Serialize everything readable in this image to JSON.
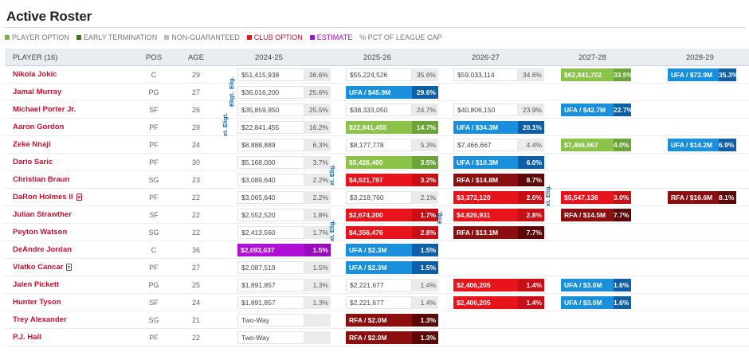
{
  "page": {
    "title": "Active Roster"
  },
  "legend": [
    {
      "label": "PLAYER OPTION",
      "color": "#7cb342"
    },
    {
      "label": "EARLY TERMINATION",
      "color": "#3d7a1f"
    },
    {
      "label": "NON-GUARANTEED",
      "color": "#bdbdbd"
    },
    {
      "label": "CLUB OPTION",
      "color": "#e8141c"
    },
    {
      "label": "ESTIMATE",
      "color": "#b10ed6"
    },
    {
      "label": "% PCT OF LEAGUE CAP",
      "color": ""
    }
  ],
  "columns": {
    "player": "PLAYER (16)",
    "pos": "POS",
    "age": "AGE",
    "seasons": [
      "2024-25",
      "2025-26",
      "2026-27",
      "2027-28",
      "2028-29"
    ]
  },
  "elig_labels": [
    "xt. Eligt.",
    "Eligt.",
    "Elig.",
    "xt. Elig.",
    "xt. Elig.",
    "Elig.",
    "xt. Elig."
  ],
  "rows": [
    {
      "name": "Nikola Jokic",
      "pos": "C",
      "age": "29",
      "icon": "",
      "cells": [
        {
          "t": "plain",
          "amt": "$51,415,938",
          "pct": "36.6%"
        },
        {
          "t": "plain",
          "amt": "$55,224,526",
          "pct": "35.6%"
        },
        {
          "t": "plain",
          "amt": "$59,033,114",
          "pct": "34.6%"
        },
        {
          "t": "player",
          "amt": "$62,841,702",
          "pct": "33.5%"
        },
        {
          "t": "ufa",
          "amt": "UFA / $72.9M",
          "pct": "35.3%"
        }
      ]
    },
    {
      "name": "Jamal Murray",
      "pos": "PG",
      "age": "27",
      "icon": "",
      "cells": [
        {
          "t": "plain",
          "amt": "$36,016,200",
          "pct": "25.6%"
        },
        {
          "t": "ufa",
          "amt": "UFA / $45.9M",
          "pct": "29.6%"
        },
        null,
        null,
        null
      ]
    },
    {
      "name": "Michael Porter Jr.",
      "pos": "SF",
      "age": "26",
      "icon": "",
      "cells": [
        {
          "t": "plain",
          "amt": "$35,859,950",
          "pct": "25.5%"
        },
        {
          "t": "plain",
          "amt": "$38,333,050",
          "pct": "24.7%"
        },
        {
          "t": "plain",
          "amt": "$40,806,150",
          "pct": "23.9%"
        },
        {
          "t": "ufa",
          "amt": "UFA / $42.7M",
          "pct": "22.7%"
        },
        null
      ]
    },
    {
      "name": "Aaron Gordon",
      "pos": "PF",
      "age": "29",
      "icon": "",
      "cells": [
        {
          "t": "plain",
          "amt": "$22,841,455",
          "pct": "16.2%"
        },
        {
          "t": "player",
          "amt": "$22,841,455",
          "pct": "14.7%"
        },
        {
          "t": "ufa",
          "amt": "UFA / $34.3M",
          "pct": "20.1%"
        },
        null,
        null
      ]
    },
    {
      "name": "Zeke Nnaji",
      "pos": "PF",
      "age": "24",
      "icon": "",
      "cells": [
        {
          "t": "plain",
          "amt": "$8,888,889",
          "pct": "6.3%"
        },
        {
          "t": "plain",
          "amt": "$8,177,778",
          "pct": "5.3%"
        },
        {
          "t": "plain",
          "amt": "$7,466,667",
          "pct": "4.4%"
        },
        {
          "t": "player",
          "amt": "$7,466,667",
          "pct": "4.0%"
        },
        {
          "t": "ufa",
          "amt": "UFA / $14.2M",
          "pct": "6.9%"
        }
      ]
    },
    {
      "name": "Dario Saric",
      "pos": "PF",
      "age": "30",
      "icon": "",
      "cells": [
        {
          "t": "plain",
          "amt": "$5,168,000",
          "pct": "3.7%"
        },
        {
          "t": "player",
          "amt": "$5,426,400",
          "pct": "3.5%"
        },
        {
          "t": "ufa",
          "amt": "UFA / $10.3M",
          "pct": "6.0%"
        },
        null,
        null
      ]
    },
    {
      "name": "Christian Braun",
      "pos": "SG",
      "age": "23",
      "icon": "",
      "cells": [
        {
          "t": "plain",
          "amt": "$3,089,640",
          "pct": "2.2%"
        },
        {
          "t": "club",
          "amt": "$4,921,797",
          "pct": "3.2%"
        },
        {
          "t": "rfa",
          "amt": "RFA / $14.8M",
          "pct": "8.7%"
        },
        null,
        null
      ]
    },
    {
      "name": "DaRon Holmes II",
      "pos": "PF",
      "age": "22",
      "icon": "doc",
      "cells": [
        {
          "t": "plain",
          "amt": "$3,065,640",
          "pct": "2.2%"
        },
        {
          "t": "plain",
          "amt": "$3,218,760",
          "pct": "2.1%"
        },
        {
          "t": "club",
          "amt": "$3,372,120",
          "pct": "2.0%"
        },
        {
          "t": "club",
          "amt": "$5,547,138",
          "pct": "3.0%"
        },
        {
          "t": "rfa",
          "amt": "RFA / $16.6M",
          "pct": "8.1%"
        }
      ]
    },
    {
      "name": "Julian Strawther",
      "pos": "SF",
      "age": "22",
      "icon": "",
      "cells": [
        {
          "t": "plain",
          "amt": "$2,552,520",
          "pct": "1.8%"
        },
        {
          "t": "club",
          "amt": "$2,674,200",
          "pct": "1.7%"
        },
        {
          "t": "club",
          "amt": "$4,826,931",
          "pct": "2.8%"
        },
        {
          "t": "rfa",
          "amt": "RFA / $14.5M",
          "pct": "7.7%"
        },
        null
      ]
    },
    {
      "name": "Peyton Watson",
      "pos": "SG",
      "age": "22",
      "icon": "",
      "cells": [
        {
          "t": "plain",
          "amt": "$2,413,560",
          "pct": "1.7%"
        },
        {
          "t": "club",
          "amt": "$4,356,476",
          "pct": "2.8%"
        },
        {
          "t": "rfa",
          "amt": "RFA / $13.1M",
          "pct": "7.7%"
        },
        null,
        null
      ]
    },
    {
      "name": "DeAndre Jordan",
      "pos": "C",
      "age": "36",
      "icon": "",
      "cells": [
        {
          "t": "est",
          "amt": "$2,093,637",
          "pct": "1.5%"
        },
        {
          "t": "ufa",
          "amt": "UFA / $2.3M",
          "pct": "1.5%"
        },
        null,
        null,
        null
      ]
    },
    {
      "name": "Vlatko Cancar",
      "pos": "PF",
      "age": "27",
      "icon": "docgray",
      "cells": [
        {
          "t": "plain",
          "amt": "$2,087,519",
          "pct": "1.5%"
        },
        {
          "t": "ufa",
          "amt": "UFA / $2.3M",
          "pct": "1.5%"
        },
        null,
        null,
        null
      ]
    },
    {
      "name": "Jalen Pickett",
      "pos": "PG",
      "age": "25",
      "icon": "",
      "cells": [
        {
          "t": "plain",
          "amt": "$1,891,857",
          "pct": "1.3%"
        },
        {
          "t": "plain",
          "amt": "$2,221,677",
          "pct": "1.4%"
        },
        {
          "t": "club",
          "amt": "$2,406,205",
          "pct": "1.4%"
        },
        {
          "t": "ufa",
          "amt": "UFA / $3.0M",
          "pct": "1.6%"
        },
        null
      ]
    },
    {
      "name": "Hunter Tyson",
      "pos": "SF",
      "age": "24",
      "icon": "",
      "cells": [
        {
          "t": "plain",
          "amt": "$1,891,857",
          "pct": "1.3%"
        },
        {
          "t": "plain",
          "amt": "$2,221,677",
          "pct": "1.4%"
        },
        {
          "t": "club",
          "amt": "$2,406,205",
          "pct": "1.4%"
        },
        {
          "t": "ufa",
          "amt": "UFA / $3.0M",
          "pct": "1.6%"
        },
        null
      ]
    },
    {
      "name": "Trey Alexander",
      "pos": "SG",
      "age": "21",
      "icon": "",
      "cells": [
        {
          "t": "twoway",
          "amt": "Two-Way",
          "pct": ""
        },
        {
          "t": "rfa",
          "amt": "RFA / $2.0M",
          "pct": "1.3%"
        },
        null,
        null,
        null
      ]
    },
    {
      "name": "P.J. Hall",
      "pos": "PF",
      "age": "22",
      "icon": "",
      "cells": [
        {
          "t": "twoway",
          "amt": "Two-Way",
          "pct": ""
        },
        {
          "t": "rfa",
          "amt": "RFA / $2.0M",
          "pct": "1.3%"
        },
        null,
        null,
        null
      ]
    }
  ]
}
